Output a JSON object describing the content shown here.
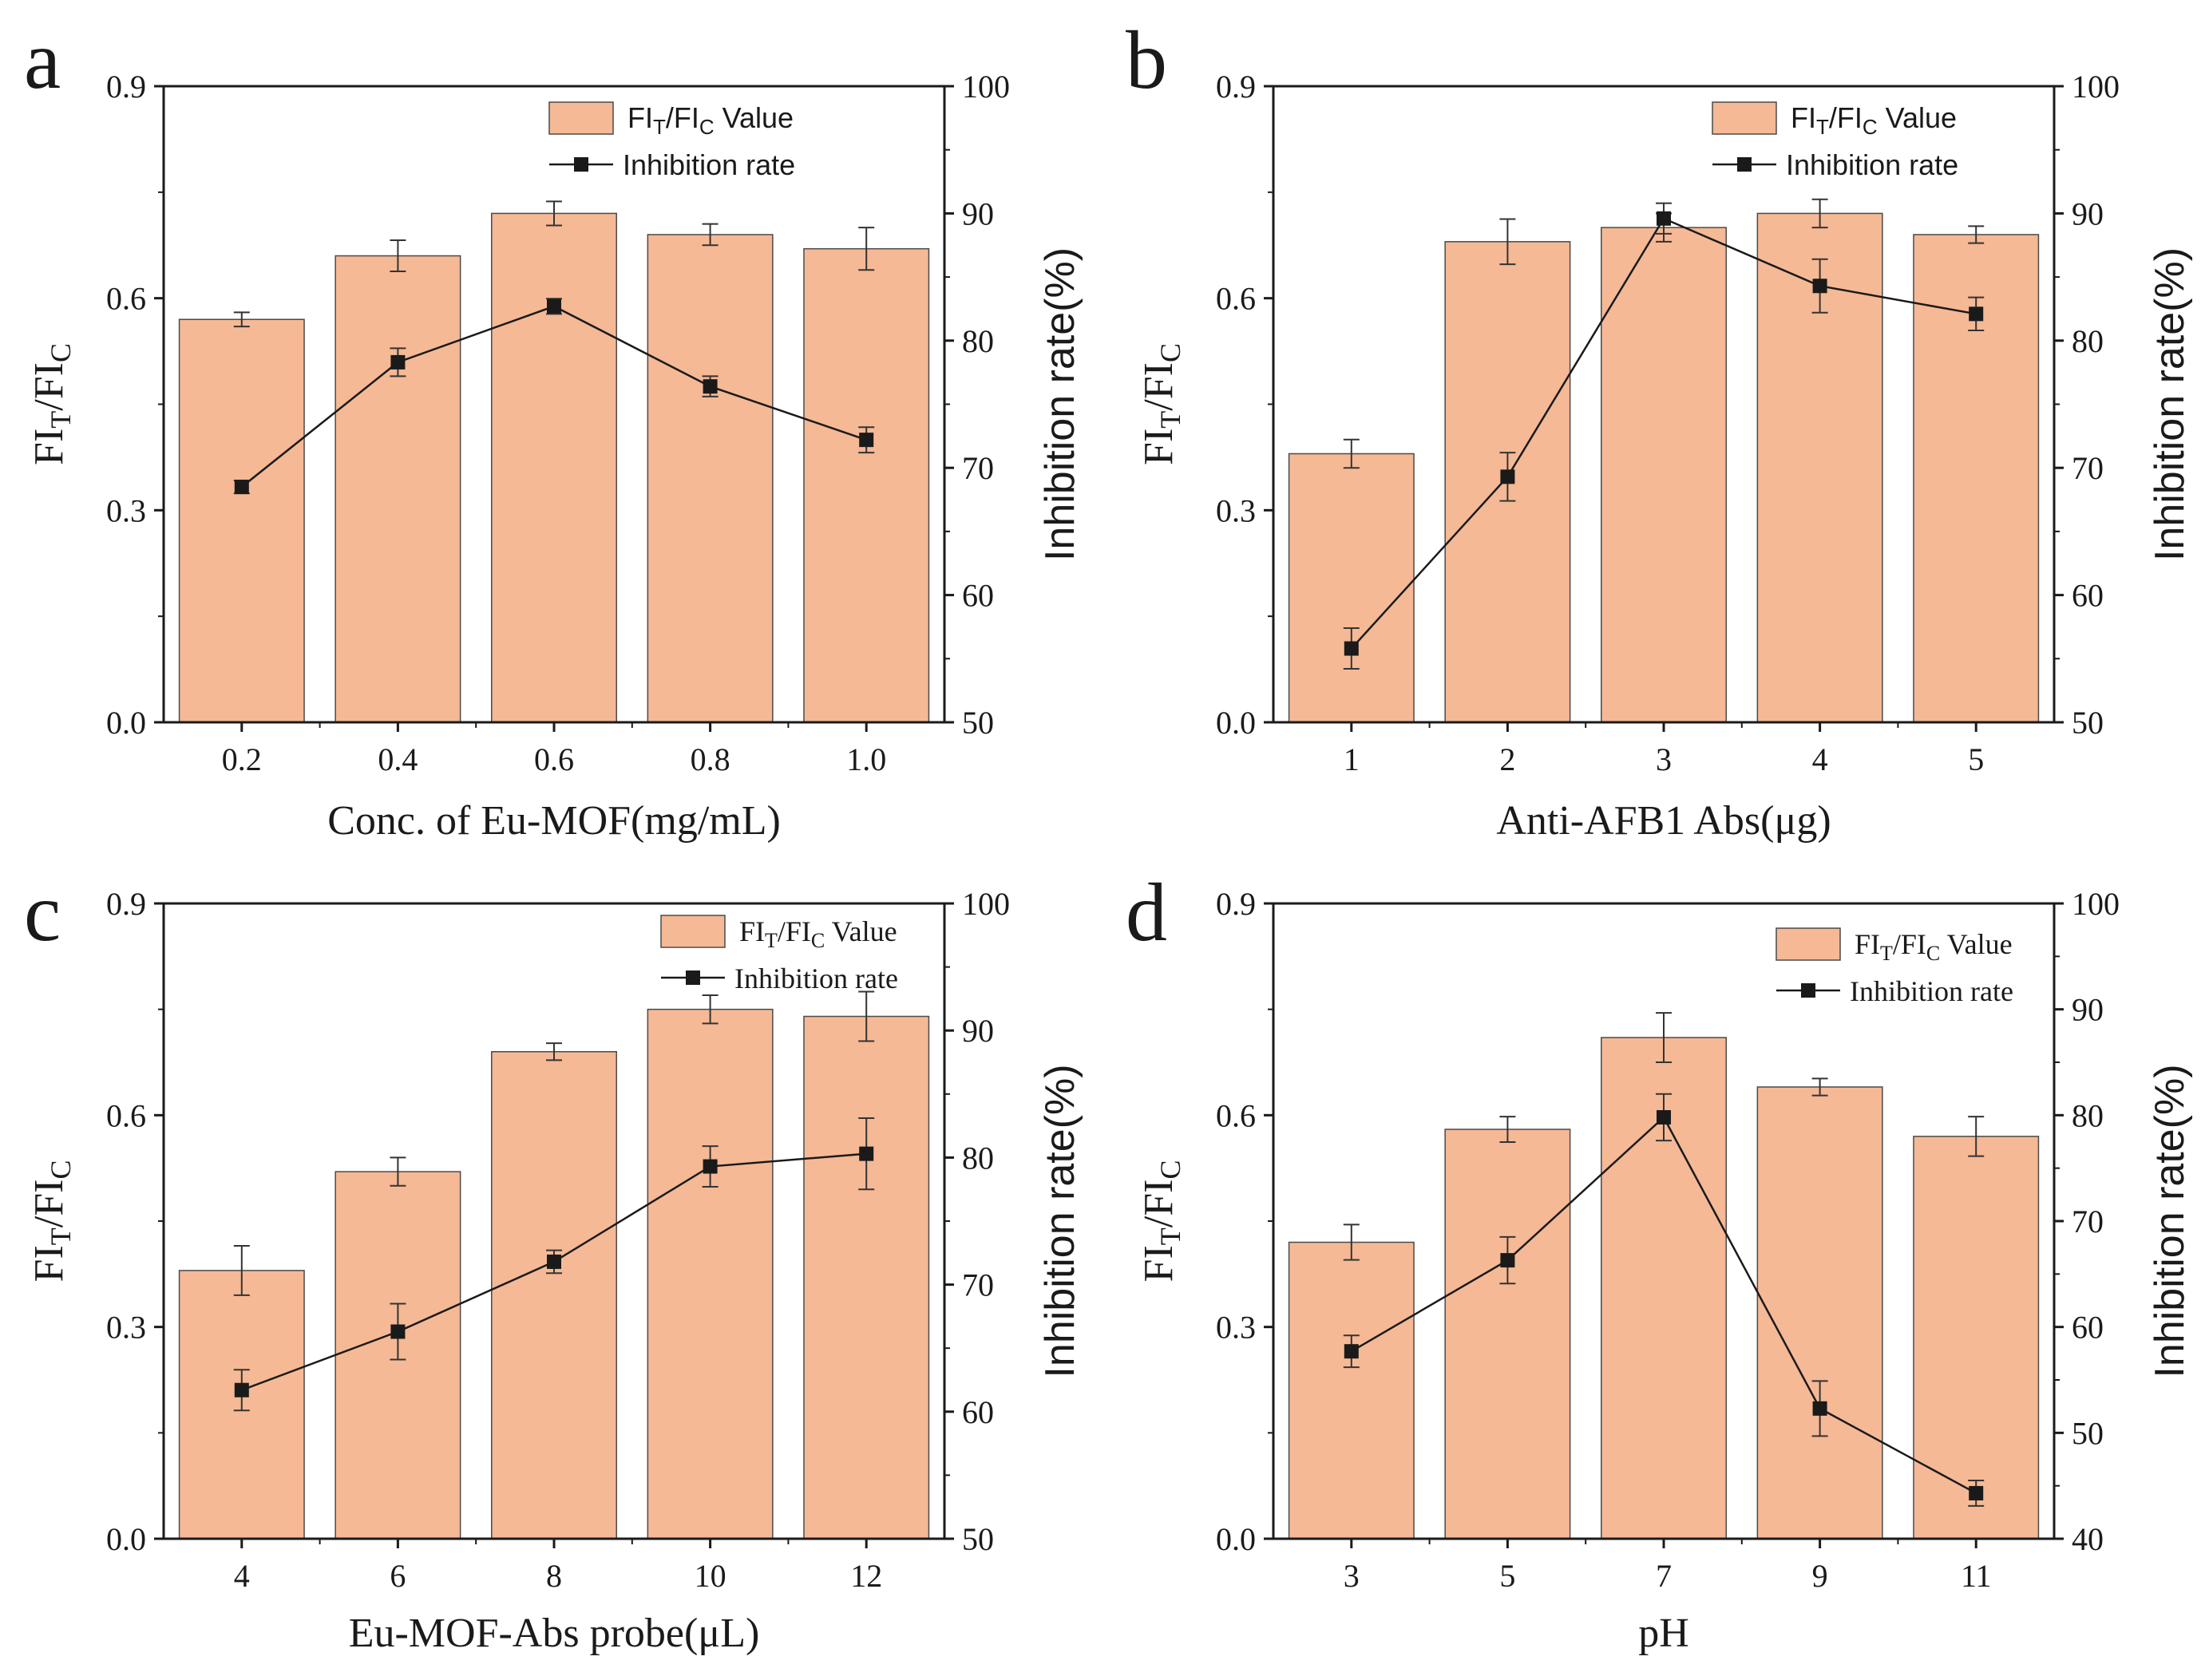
{
  "colors": {
    "bar_fill": "#f5b995",
    "bar_stroke": "#4a4a4a",
    "line": "#1a1a1a",
    "axis": "#1a1a1a"
  },
  "legend": {
    "bar_label_prefix": "FI",
    "bar_label_sub1": "T",
    "bar_label_mid": "/FI",
    "bar_label_sub2": "C",
    "bar_label_suffix": " Value",
    "line_label": "Inhibition rate"
  },
  "y_left_label": {
    "p1": "FI",
    "s1": "T",
    "p2": "/FI",
    "s2": "C"
  },
  "chart_data": [
    {
      "type": "bar",
      "panel": "a",
      "xlabel": "Conc. of Eu-MOF(mg/mL)",
      "ylabel": "FIT/FIC",
      "y2label": "Inhibition rate(%)",
      "categories": [
        "0.2",
        "0.4",
        "0.6",
        "0.8",
        "1.0"
      ],
      "ylim": [
        0,
        0.9
      ],
      "yticks": [
        "0.0",
        "0.3",
        "0.6",
        "0.9"
      ],
      "y2lim": [
        50,
        100
      ],
      "y2ticks": [
        "50",
        "60",
        "70",
        "80",
        "90",
        "100"
      ],
      "series": [
        {
          "name": "FIT/FIC Value",
          "kind": "bar",
          "axis": "left",
          "values": [
            0.57,
            0.66,
            0.72,
            0.69,
            0.67
          ],
          "errors": [
            0.01,
            0.022,
            0.017,
            0.015,
            0.03
          ]
        },
        {
          "name": "Inhibition rate",
          "kind": "line",
          "axis": "right",
          "values": [
            68.5,
            78.3,
            82.7,
            76.4,
            72.2
          ],
          "errors": [
            0.5,
            1.1,
            0.6,
            0.8,
            1.0
          ]
        }
      ]
    },
    {
      "type": "bar",
      "panel": "b",
      "xlabel": "Anti-AFB1 Abs(μg)",
      "ylabel": "FIT/FIC",
      "y2label": "Inhibition rate(%)",
      "categories": [
        "1",
        "2",
        "3",
        "4",
        "5"
      ],
      "ylim": [
        0,
        0.9
      ],
      "yticks": [
        "0.0",
        "0.3",
        "0.6",
        "0.9"
      ],
      "y2lim": [
        50,
        100
      ],
      "y2ticks": [
        "50",
        "60",
        "70",
        "80",
        "90",
        "100"
      ],
      "series": [
        {
          "name": "FIT/FIC Value",
          "kind": "bar",
          "axis": "left",
          "values": [
            0.38,
            0.68,
            0.7,
            0.72,
            0.69
          ],
          "errors": [
            0.02,
            0.032,
            0.02,
            0.02,
            0.012
          ]
        },
        {
          "name": "Inhibition rate",
          "kind": "line",
          "axis": "right",
          "values": [
            55.8,
            69.3,
            89.6,
            84.3,
            82.1
          ],
          "errors": [
            1.6,
            1.9,
            1.2,
            2.1,
            1.3
          ]
        }
      ]
    },
    {
      "type": "bar",
      "panel": "c",
      "xlabel": "Eu-MOF-Abs probe(μL)",
      "ylabel": "FIT/FIC",
      "y2label": "Inhibition rate(%)",
      "categories": [
        "4",
        "6",
        "8",
        "10",
        "12"
      ],
      "ylim": [
        0,
        0.9
      ],
      "yticks": [
        "0.0",
        "0.3",
        "0.6",
        "0.9"
      ],
      "y2lim": [
        50,
        100
      ],
      "y2ticks": [
        "50",
        "60",
        "70",
        "80",
        "90",
        "100"
      ],
      "series": [
        {
          "name": "FIT/FIC Value",
          "kind": "bar",
          "axis": "left",
          "values": [
            0.38,
            0.52,
            0.69,
            0.75,
            0.74
          ],
          "errors": [
            0.035,
            0.02,
            0.012,
            0.02,
            0.035
          ]
        },
        {
          "name": "Inhibition rate",
          "kind": "line",
          "axis": "right",
          "values": [
            61.7,
            66.3,
            71.8,
            79.3,
            80.3
          ],
          "errors": [
            1.6,
            2.2,
            0.9,
            1.6,
            2.8
          ]
        }
      ]
    },
    {
      "type": "bar",
      "panel": "d",
      "xlabel": "pH",
      "ylabel": "FIT/FIC",
      "y2label": "Inhibition rate(%)",
      "categories": [
        "3",
        "5",
        "7",
        "9",
        "11"
      ],
      "ylim": [
        0,
        0.9
      ],
      "yticks": [
        "0.0",
        "0.3",
        "0.6",
        "0.9"
      ],
      "y2lim": [
        40,
        100
      ],
      "y2ticks": [
        "40",
        "50",
        "60",
        "70",
        "80",
        "90",
        "100"
      ],
      "series": [
        {
          "name": "FIT/FIC Value",
          "kind": "bar",
          "axis": "left",
          "values": [
            0.42,
            0.58,
            0.71,
            0.64,
            0.57
          ],
          "errors": [
            0.025,
            0.018,
            0.035,
            0.012,
            0.028
          ]
        },
        {
          "name": "Inhibition rate",
          "kind": "line",
          "axis": "right",
          "values": [
            57.7,
            66.3,
            79.8,
            52.3,
            44.3
          ],
          "errors": [
            1.5,
            2.2,
            2.2,
            2.6,
            1.2
          ]
        }
      ]
    }
  ]
}
